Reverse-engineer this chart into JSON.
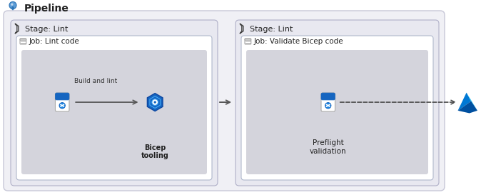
{
  "title": "Pipeline",
  "outer_bg": "#ffffff",
  "pipeline_box_face": "#f0f0f5",
  "pipeline_box_edge": "#c8c8d8",
  "stage_box_face": "#e8e8f0",
  "stage_box_edge": "#b0b0c8",
  "job_box_face": "#ffffff",
  "job_box_edge": "#b0b8cc",
  "inner_box_face": "#d4d4dc",
  "stage1_label": "Stage: Lint",
  "stage2_label": "Stage: Lint",
  "job1_label": "Job: Lint code",
  "job2_label": "Job: Validate Bicep code",
  "step1_label": "Build and lint",
  "step1_tool": "Bicep\ntooling",
  "step2_label": "Preflight\nvalidation",
  "arrow_color": "#555555",
  "text_color": "#222222",
  "icon_blue_dark": "#1565c0",
  "icon_blue_mid": "#1e88e5",
  "icon_blue_light": "#42a5f5",
  "azure_dark": "#0078d4",
  "azure_light": "#00bcf2"
}
